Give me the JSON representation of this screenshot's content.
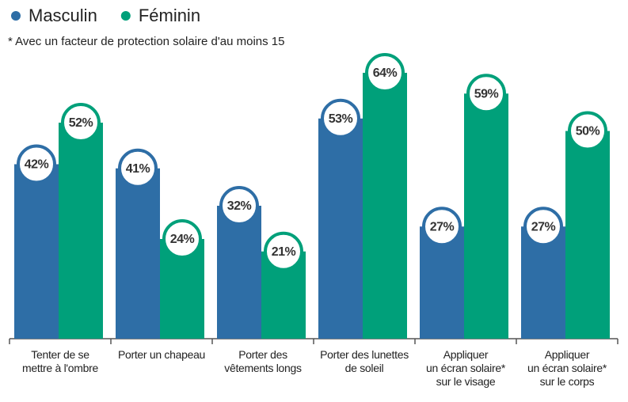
{
  "chart_data": {
    "type": "bar",
    "subtitle": "* Avec un facteur de protection solaire d'au moins 15",
    "categories": [
      "Tenter de se\nmettre à l'ombre",
      "Porter un chapeau",
      "Porter des\nvêtements longs",
      "Porter des lunettes\nde soleil",
      "Appliquer\nun écran solaire*\nsur le visage",
      "Appliquer\nun écran solaire*\nsur le corps"
    ],
    "series": [
      {
        "name": "Masculin",
        "color": "#2e6ea6",
        "values": [
          42,
          41,
          32,
          53,
          27,
          27
        ],
        "value_labels": [
          "42%",
          "41%",
          "32%",
          "53%",
          "27%",
          "27%"
        ]
      },
      {
        "name": "Féminin",
        "color": "#00a07a",
        "values": [
          52,
          24,
          21,
          64,
          59,
          50
        ],
        "value_labels": [
          "52%",
          "24%",
          "21%",
          "64%",
          "59%",
          "50%"
        ]
      }
    ]
  }
}
